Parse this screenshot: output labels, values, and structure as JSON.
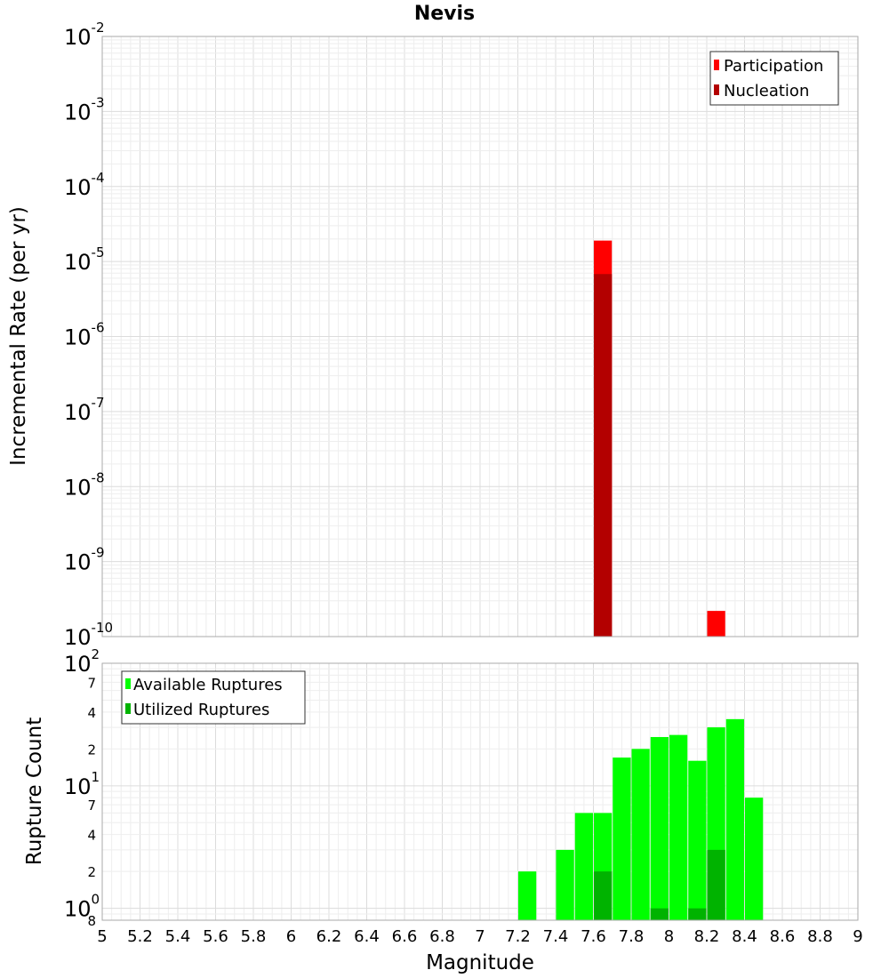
{
  "chart_data": [
    {
      "type": "bar",
      "title": "Nevis",
      "xlabel": "",
      "ylabel": "Incremental Rate (per yr)",
      "yscale": "log",
      "xlim": [
        5,
        9
      ],
      "ylim": [
        1e-10,
        0.01
      ],
      "grid": true,
      "legend_position": "top-right",
      "y_ticks": [
        {
          "base": "10",
          "exp": "-10"
        },
        {
          "base": "10",
          "exp": "-9"
        },
        {
          "base": "10",
          "exp": "-8"
        },
        {
          "base": "10",
          "exp": "-7"
        },
        {
          "base": "10",
          "exp": "-6"
        },
        {
          "base": "10",
          "exp": "-5"
        },
        {
          "base": "10",
          "exp": "-4"
        },
        {
          "base": "10",
          "exp": "-3"
        },
        {
          "base": "10",
          "exp": "-2"
        }
      ],
      "bin_width": 0.1,
      "series": [
        {
          "name": "Participation",
          "color": "#ff0000",
          "x": [
            7.65,
            8.25
          ],
          "values": [
            1.9e-05,
            2.2e-10
          ]
        },
        {
          "name": "Nucleation",
          "color": "#b30000",
          "x": [
            7.65
          ],
          "values": [
            6.8e-06
          ]
        }
      ]
    },
    {
      "type": "bar",
      "title": "",
      "xlabel": "Magnitude",
      "ylabel": "Rupture Count",
      "yscale": "log",
      "xlim": [
        5,
        9
      ],
      "ylim": [
        0.8,
        100
      ],
      "grid": true,
      "legend_position": "top-left",
      "x_ticks": [
        "5",
        "5.2",
        "5.4",
        "5.6",
        "5.8",
        "6",
        "6.2",
        "6.4",
        "6.6",
        "6.8",
        "7",
        "7.2",
        "7.4",
        "7.6",
        "7.8",
        "8",
        "8.2",
        "8.4",
        "8.6",
        "8.8",
        "9"
      ],
      "y_major_ticks": [
        {
          "value": 1,
          "base": "10",
          "exp": "0"
        },
        {
          "value": 10,
          "base": "10",
          "exp": "1"
        },
        {
          "value": 100,
          "base": "10",
          "exp": "2"
        }
      ],
      "y_minor_ticks": [
        {
          "value": 0.8,
          "label": "8"
        },
        {
          "value": 2,
          "label": "2"
        },
        {
          "value": 4,
          "label": "4"
        },
        {
          "value": 7,
          "label": "7"
        },
        {
          "value": 20,
          "label": "2"
        },
        {
          "value": 40,
          "label": "4"
        },
        {
          "value": 70,
          "label": "7"
        }
      ],
      "bin_width": 0.1,
      "series": [
        {
          "name": "Available Ruptures",
          "color": "#00ff00",
          "x": [
            7.25,
            7.45,
            7.55,
            7.65,
            7.75,
            7.85,
            7.95,
            8.05,
            8.15,
            8.25,
            8.35,
            8.45
          ],
          "values": [
            2,
            3,
            6,
            6,
            17,
            20,
            25,
            26,
            16,
            30,
            35,
            8
          ]
        },
        {
          "name": "Utilized Ruptures",
          "color": "#00b300",
          "x": [
            7.65,
            7.95,
            8.15,
            8.25
          ],
          "values": [
            2,
            1,
            1,
            3
          ]
        }
      ]
    }
  ]
}
